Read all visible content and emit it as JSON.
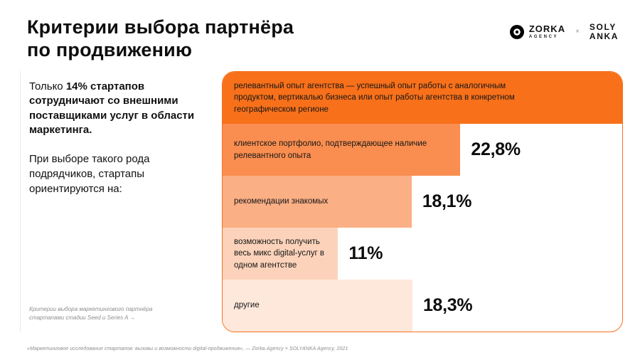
{
  "title": {
    "line1": "Критерии выбора партнёра",
    "line2": "по продвижению"
  },
  "logos": {
    "zorka_name": "ZORKA",
    "zorka_sub": "AGENCY",
    "separator": "×",
    "solyanka_line1": "SOLY",
    "solyanka_line2": "ANKA"
  },
  "left_panel": {
    "intro_regular": "Только ",
    "intro_bold": "14% стартапов сотрудничают со внешними поставщиками услуг в области маркетинга.",
    "paragraph": "При выборе такого рода подрядчиков, стартапы ориентируются на:",
    "caption": "Критерии выбора маркетингового партнёра стартапами стадии Seed и Series A  →"
  },
  "footnote": "«Маркетинговое исследование стартапов: вызовы и возможности digital-продвижения», — Zorka.Agency × SOLYANKA Agency, 2021",
  "chart_data": {
    "type": "bar",
    "orientation": "horizontal",
    "accent_color": "#F8701A",
    "categories": [
      "релевантный опыт агентства — успешный опыт работы с аналогичным продуктом, вертикалью бизнеса или опыт работы агентства в конкретном географическом регионе",
      "клиентское портфолио, подтверждающее наличие релевантного опыта",
      "рекомендации знакомых",
      "возможность получить весь микс digital-услуг в одном агентстве",
      "другие"
    ],
    "bars": [
      {
        "category": "релевантный опыт агентства — успешный опыт работы с аналогичным продуктом, вертикалью бизнеса или опыт работы агентства в конкретном географическом регионе",
        "value": null,
        "value_label": "",
        "width_pct": 100,
        "color": "#F8701A"
      },
      {
        "category": "клиентское портфолио, подтверждающее наличие релевантного опыта",
        "value": 22.8,
        "value_label": "22,8%",
        "width_pct": 59.5,
        "color": "#F98E50"
      },
      {
        "category": "рекомендации знакомых",
        "value": 18.1,
        "value_label": "18,1%",
        "width_pct": 47.3,
        "color": "#FBAF85"
      },
      {
        "category": "возможность получить весь микс digital-услуг в одном агентстве",
        "value": 11,
        "value_label": "11%",
        "width_pct": 28.9,
        "color": "#FCD3BA"
      },
      {
        "category": "другие",
        "value": 18.3,
        "value_label": "18,3%",
        "width_pct": 47.5,
        "color": "#FEE8DC"
      }
    ]
  }
}
